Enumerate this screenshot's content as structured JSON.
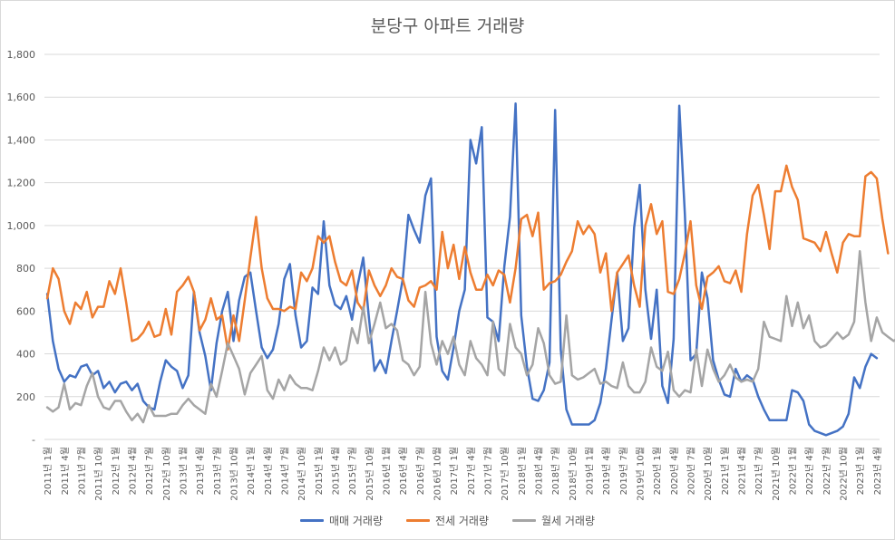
{
  "chart_data": {
    "type": "line",
    "title": "분당구 아파트 거래량",
    "xlabel": "",
    "ylabel": "",
    "ylim": [
      0,
      1800
    ],
    "y_ticks": [
      "-",
      "200",
      "400",
      "600",
      "800",
      "1,000",
      "1,200",
      "1,400",
      "1,600",
      "1,800"
    ],
    "y_tick_values": [
      0,
      200,
      400,
      600,
      800,
      1000,
      1200,
      1400,
      1600,
      1800
    ],
    "gridlines": true,
    "legend_position": "bottom",
    "x_tick_labels": [
      "2011년 1월",
      "2011년 4월",
      "2011년 7월",
      "2011년 10월",
      "2012년 1월",
      "2012년 4월",
      "2012년 7월",
      "2012년 10월",
      "2013년 1월",
      "2013년 4월",
      "2013년 7월",
      "2013년 10월",
      "2014년 1월",
      "2014년 4월",
      "2014년 7월",
      "2014년 10월",
      "2015년 1월",
      "2015년 4월",
      "2015년 7월",
      "2015년 10월",
      "2016년 1월",
      "2016년 4월",
      "2016년 7월",
      "2016년 10월",
      "2017년 1월",
      "2017년 4월",
      "2017년 7월",
      "2017년 10월",
      "2018년 1월",
      "2018년 4월",
      "2018년 7월",
      "2018년 10월",
      "2019년 1월",
      "2019년 4월",
      "2019년 7월",
      "2019년 10월",
      "2020년 1월",
      "2020년 4월",
      "2020년 7월",
      "2020년 10월",
      "2021년 1월",
      "2021년 4월",
      "2021년 7월",
      "2021년 10월",
      "2022년 1월",
      "2022년 4월",
      "2022년 7월",
      "2022년 10월",
      "2023년 1월",
      "2023년 4월"
    ],
    "series": [
      {
        "name": "매매 거래량",
        "color": "#4472c4",
        "values": [
          680,
          460,
          330,
          270,
          300,
          290,
          340,
          350,
          300,
          320,
          240,
          270,
          220,
          260,
          270,
          230,
          260,
          180,
          150,
          140,
          270,
          370,
          340,
          320,
          240,
          300,
          690,
          500,
          390,
          230,
          450,
          600,
          690,
          460,
          650,
          760,
          780,
          600,
          430,
          380,
          420,
          540,
          750,
          820,
          580,
          430,
          460,
          710,
          680,
          1020,
          720,
          630,
          610,
          670,
          560,
          720,
          850,
          570,
          320,
          370,
          310,
          460,
          600,
          750,
          1050,
          980,
          920,
          1140,
          1220,
          480,
          320,
          280,
          430,
          600,
          700,
          1400,
          1290,
          1460,
          570,
          550,
          460,
          810,
          1040,
          1570,
          580,
          340,
          190,
          180,
          230,
          360,
          1540,
          420,
          140,
          70,
          70,
          70,
          70,
          90,
          170,
          330,
          560,
          780,
          460,
          520,
          990,
          1190,
          700,
          470,
          700,
          250,
          170,
          470,
          1560,
          1050,
          370,
          400,
          780,
          660,
          370,
          280,
          210,
          200,
          330,
          270,
          300,
          280,
          200,
          140,
          90,
          90,
          90,
          90,
          230,
          220,
          180,
          70,
          40,
          30,
          20,
          30,
          40,
          60,
          120,
          290,
          240,
          340,
          400,
          380
        ]
      },
      {
        "name": "전세 거래량",
        "color": "#ed7d31",
        "values": [
          660,
          800,
          750,
          600,
          540,
          640,
          610,
          690,
          570,
          620,
          620,
          740,
          680,
          800,
          640,
          460,
          470,
          500,
          550,
          480,
          490,
          610,
          490,
          690,
          720,
          760,
          690,
          510,
          560,
          660,
          560,
          580,
          420,
          580,
          460,
          650,
          850,
          1040,
          800,
          660,
          610,
          610,
          600,
          620,
          610,
          780,
          740,
          800,
          950,
          920,
          950,
          830,
          740,
          720,
          790,
          640,
          600,
          790,
          720,
          670,
          720,
          800,
          760,
          750,
          650,
          620,
          710,
          720,
          740,
          700,
          970,
          800,
          910,
          750,
          900,
          780,
          700,
          700,
          770,
          720,
          790,
          770,
          640,
          800,
          1030,
          1050,
          950,
          1060,
          700,
          730,
          740,
          770,
          830,
          880,
          1020,
          960,
          1000,
          960,
          780,
          870,
          600,
          780,
          820,
          860,
          720,
          620,
          1000,
          1100,
          960,
          1020,
          690,
          680,
          750,
          870,
          1020,
          720,
          610,
          760,
          780,
          810,
          740,
          730,
          790,
          690,
          960,
          1140,
          1190,
          1050,
          890,
          1160,
          1160,
          1280,
          1180,
          1120,
          940,
          930,
          920,
          880,
          970,
          870,
          780,
          920,
          960,
          950,
          950,
          1230,
          1250,
          1220,
          1030,
          870
        ]
      },
      {
        "name": "월세 거래량",
        "color": "#a5a5a5",
        "values": [
          150,
          130,
          150,
          260,
          140,
          170,
          160,
          250,
          310,
          200,
          150,
          140,
          180,
          180,
          130,
          90,
          120,
          80,
          160,
          110,
          110,
          110,
          120,
          120,
          160,
          190,
          160,
          140,
          120,
          260,
          200,
          320,
          450,
          390,
          330,
          210,
          310,
          350,
          390,
          230,
          190,
          280,
          230,
          300,
          260,
          240,
          240,
          230,
          320,
          430,
          370,
          430,
          350,
          370,
          520,
          450,
          620,
          450,
          540,
          640,
          520,
          540,
          510,
          370,
          350,
          300,
          340,
          690,
          450,
          350,
          460,
          400,
          480,
          350,
          300,
          460,
          380,
          350,
          300,
          550,
          330,
          300,
          540,
          430,
          400,
          300,
          350,
          520,
          450,
          300,
          260,
          270,
          580,
          300,
          280,
          290,
          310,
          330,
          260,
          270,
          250,
          240,
          360,
          250,
          220,
          220,
          270,
          430,
          340,
          320,
          410,
          230,
          200,
          230,
          220,
          420,
          250,
          420,
          330,
          270,
          300,
          350,
          290,
          270,
          280,
          270,
          330,
          550,
          480,
          470,
          460,
          670,
          530,
          640,
          520,
          580,
          460,
          430,
          440,
          470,
          500,
          470,
          490,
          550,
          880,
          640,
          460,
          570,
          500,
          480,
          460,
          480
        ]
      }
    ]
  }
}
